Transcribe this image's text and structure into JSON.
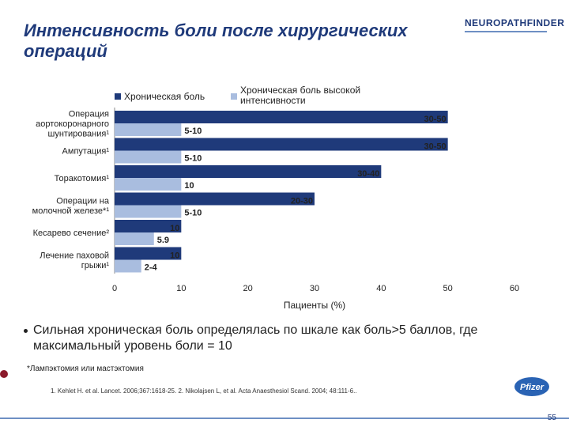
{
  "title": "Интенсивность боли после хирургических операций",
  "logo": "NEUROPATHFINDER",
  "colors": {
    "chronic": "#1f3a7a",
    "high": "#a9bddf",
    "title": "#1f3a7a"
  },
  "chart_data": {
    "type": "bar",
    "orientation": "horizontal",
    "categories": [
      "Операция аортокоронарного шунтирования¹",
      "Ампутация¹",
      "Торакотомия¹",
      "Операции на молочной железе*¹",
      "Кесарево сечение²",
      "Лечение паховой грыжи¹"
    ],
    "category_lines": [
      [
        "Операция",
        "аортокоронарного",
        "шунтирования¹"
      ],
      [
        "Ампутация¹"
      ],
      [
        "Торакотомия¹"
      ],
      [
        "Операции на",
        "молочной железе*¹"
      ],
      [
        "Кесарево сечение²"
      ],
      [
        "Лечение паховой",
        "грыжи¹"
      ]
    ],
    "series": [
      {
        "name": "Хроническая боль",
        "values": [
          50,
          50,
          40,
          30,
          10,
          10
        ],
        "labels": [
          "30-50",
          "30-50",
          "30-40",
          "20-30",
          "10",
          "10"
        ]
      },
      {
        "name": "Хроническая боль высокой интенсивности",
        "values": [
          10,
          10,
          10,
          10,
          5.9,
          4
        ],
        "labels": [
          "5-10",
          "5-10",
          "10",
          "5-10",
          "5.9",
          "2-4"
        ]
      }
    ],
    "xlim": [
      0,
      60
    ],
    "xticks": [
      "0",
      "10",
      "20",
      "30",
      "40",
      "50",
      "60"
    ],
    "xlabel": "Пациенты (%)",
    "legend": [
      "Хроническая боль",
      "Хроническая боль высокой интенсивности"
    ]
  },
  "bullet": "Сильная хроническая боль определялась по шкале как боль>5 баллов, где максимальный уровень боли = 10",
  "footnote": "*Лампэктомия или мастэктомия",
  "references": "1. Kehlet H. et al. Lancet. 2006;367:1618-25. 2. Nikolajsen L, et al. Acta Anaesthesiol Scand. 2004; 48:111-6..",
  "pfizer": "Pfizer",
  "page_number": "55"
}
